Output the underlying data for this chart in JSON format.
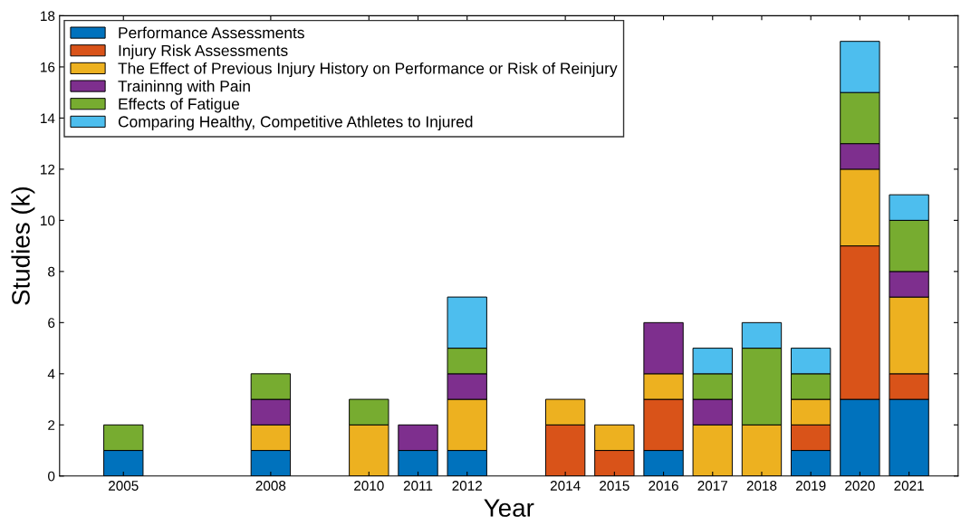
{
  "chart_data": {
    "type": "bar",
    "stacked": true,
    "xlabel": "Year",
    "ylabel": "Studies (k)",
    "x": [
      2005,
      2008,
      2010,
      2011,
      2012,
      2014,
      2015,
      2016,
      2017,
      2018,
      2019,
      2020,
      2021
    ],
    "xlim": [
      2003.7,
      2022
    ],
    "xticks": [
      2005,
      2008,
      2010,
      2011,
      2012,
      2014,
      2015,
      2016,
      2017,
      2018,
      2019,
      2020,
      2021
    ],
    "ylim": [
      0,
      18
    ],
    "yticks": [
      0,
      2,
      4,
      6,
      8,
      10,
      12,
      14,
      16,
      18
    ],
    "series": [
      {
        "name": "Performance Assessments",
        "color": "#0072bd",
        "values": [
          1,
          1,
          0,
          1,
          1,
          0,
          0,
          1,
          0,
          0,
          1,
          3,
          3
        ]
      },
      {
        "name": "Injury Risk Assessments",
        "color": "#d95319",
        "values": [
          0,
          0,
          0,
          0,
          0,
          2,
          1,
          2,
          0,
          0,
          1,
          6,
          1
        ]
      },
      {
        "name": "The Effect of Previous Injury History on Performance or Risk of Reinjury",
        "color": "#edb120",
        "values": [
          0,
          1,
          2,
          0,
          2,
          1,
          1,
          1,
          2,
          2,
          1,
          3,
          3
        ]
      },
      {
        "name": "Traininng with Pain",
        "color": "#7e2f8e",
        "values": [
          0,
          1,
          0,
          1,
          1,
          0,
          0,
          2,
          1,
          0,
          0,
          1,
          1
        ]
      },
      {
        "name": "Effects of Fatigue",
        "color": "#77ac30",
        "values": [
          1,
          1,
          1,
          0,
          1,
          0,
          0,
          0,
          1,
          3,
          1,
          2,
          2
        ]
      },
      {
        "name": "Comparing Healthy, Competitive Athletes to Injured",
        "color": "#4dbeee",
        "values": [
          0,
          0,
          0,
          0,
          2,
          0,
          0,
          0,
          1,
          1,
          1,
          2,
          1
        ]
      }
    ],
    "legend": "top left",
    "grid": false
  }
}
